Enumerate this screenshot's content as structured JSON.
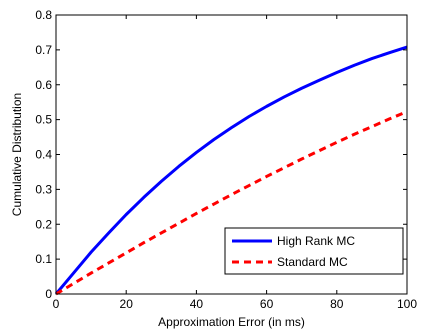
{
  "chart_data": {
    "type": "line",
    "xlabel": "Approximation Error (in ms)",
    "ylabel": "Cumulative Distribution",
    "xlim": [
      0,
      100
    ],
    "ylim": [
      0,
      0.8
    ],
    "xticks": [
      0,
      20,
      40,
      60,
      80,
      100
    ],
    "xtick_labels": [
      "0",
      "20",
      "40",
      "60",
      "80",
      "100"
    ],
    "yticks": [
      0,
      0.1,
      0.2,
      0.3,
      0.4,
      0.5,
      0.6,
      0.7,
      0.8
    ],
    "ytick_labels": [
      "0",
      "0.1",
      "0.2",
      "0.3",
      "0.4",
      "0.5",
      "0.6",
      "0.7",
      "0.8"
    ],
    "grid": false,
    "legend_position": "bottom-right",
    "series": [
      {
        "name": "High Rank MC",
        "color": "#0000ff",
        "style": "solid",
        "x": [
          0,
          5,
          10,
          15,
          20,
          25,
          30,
          35,
          40,
          45,
          50,
          55,
          60,
          65,
          70,
          75,
          80,
          85,
          90,
          95,
          100
        ],
        "y": [
          0,
          0.06,
          0.12,
          0.175,
          0.228,
          0.277,
          0.323,
          0.366,
          0.406,
          0.443,
          0.477,
          0.509,
          0.538,
          0.565,
          0.59,
          0.613,
          0.635,
          0.656,
          0.675,
          0.692,
          0.708
        ]
      },
      {
        "name": "Standard MC",
        "color": "#ff0000",
        "style": "dashed",
        "x": [
          0,
          5,
          10,
          15,
          20,
          25,
          30,
          35,
          40,
          45,
          50,
          55,
          60,
          65,
          70,
          75,
          80,
          85,
          90,
          95,
          100
        ],
        "y": [
          0,
          0.03,
          0.06,
          0.089,
          0.118,
          0.147,
          0.175,
          0.203,
          0.231,
          0.258,
          0.285,
          0.311,
          0.337,
          0.362,
          0.387,
          0.411,
          0.435,
          0.458,
          0.48,
          0.502,
          0.523
        ]
      }
    ]
  }
}
